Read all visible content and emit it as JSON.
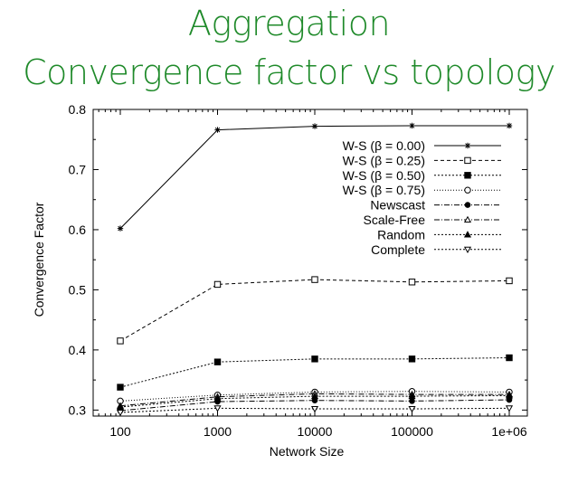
{
  "slide": {
    "title_line1": "Aggregation",
    "title_line2": "Convergence factor vs topology"
  },
  "chart_data": {
    "type": "line",
    "xlabel": "Network Size",
    "ylabel": "Convergence Factor",
    "x": [
      "100",
      "1000",
      "10000",
      "100000",
      "1e+06"
    ],
    "x_scale": "log",
    "ylim": [
      0.29,
      0.8
    ],
    "yticks": [
      0.3,
      0.4,
      0.5,
      0.6,
      0.7,
      0.8
    ],
    "grid": false,
    "legend_position": "top-right",
    "series": [
      {
        "name": "W-S (β = 0.00)",
        "marker": "asterisk",
        "dash": "",
        "values": [
          0.602,
          0.766,
          0.772,
          0.773,
          0.773
        ]
      },
      {
        "name": "W-S (β = 0.25)",
        "marker": "square-open",
        "dash": "4,3",
        "values": [
          0.415,
          0.509,
          0.517,
          0.513,
          0.515
        ]
      },
      {
        "name": "W-S (β = 0.50)",
        "marker": "square-filled",
        "dash": "2,2",
        "values": [
          0.338,
          0.38,
          0.385,
          0.385,
          0.387
        ]
      },
      {
        "name": "W-S (β = 0.75)",
        "marker": "circle-open",
        "dash": "1,2",
        "values": [
          0.315,
          0.325,
          0.33,
          0.331,
          0.33
        ]
      },
      {
        "name": "Newscast",
        "marker": "circle-filled",
        "dash": "6,2,1,2",
        "values": [
          0.299,
          0.314,
          0.316,
          0.315,
          0.317
        ]
      },
      {
        "name": "Scale-Free",
        "marker": "triangle-open",
        "dash": "6,2,1,2",
        "values": [
          0.307,
          0.322,
          0.327,
          0.326,
          0.326
        ]
      },
      {
        "name": "Random",
        "marker": "triangle-filled",
        "dash": "2,2",
        "values": [
          0.305,
          0.319,
          0.323,
          0.323,
          0.324
        ]
      },
      {
        "name": "Complete",
        "marker": "triangle-down-open",
        "dash": "2,2",
        "values": [
          0.296,
          0.303,
          0.302,
          0.302,
          0.303
        ]
      }
    ]
  }
}
